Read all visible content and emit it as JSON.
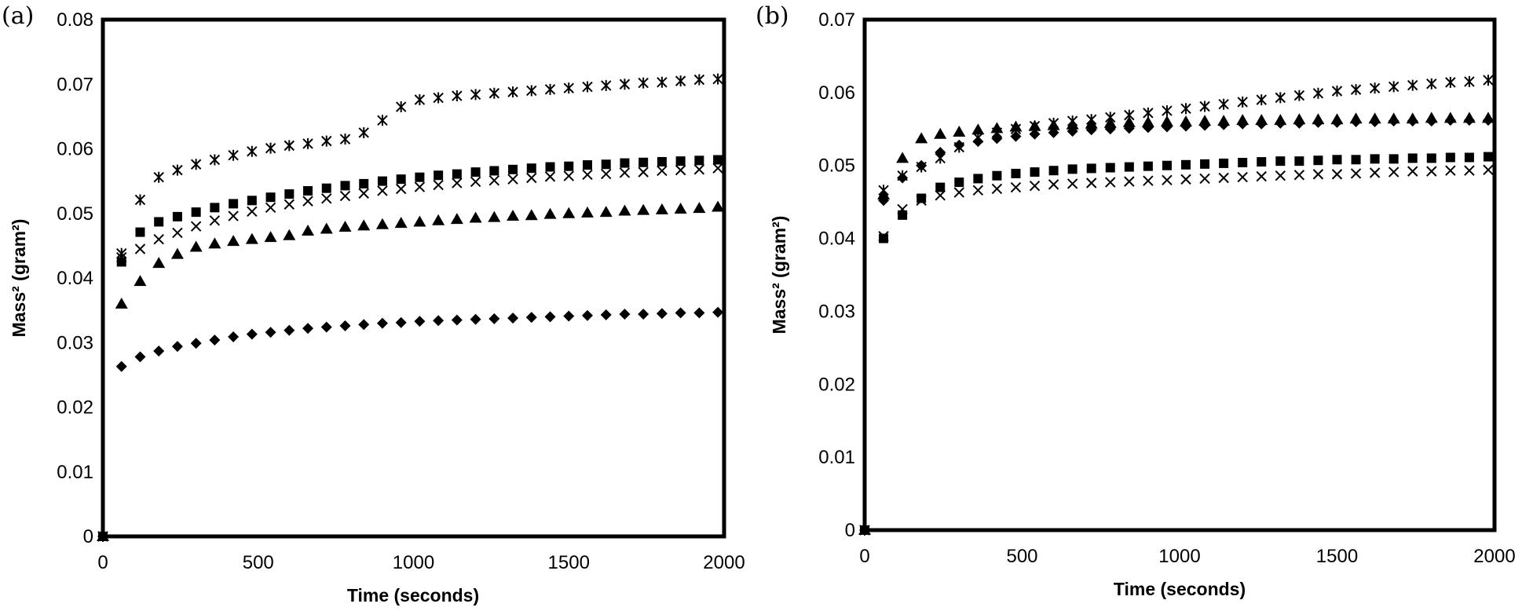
{
  "chart_data": [
    {
      "panel_label": "(a)",
      "type": "scatter",
      "xlabel": "Time (seconds)",
      "ylabel": "Mass² (gram²)",
      "xlim": [
        0,
        2000
      ],
      "ylim": [
        0,
        0.08
      ],
      "xticks": [
        0,
        500,
        1000,
        1500,
        2000
      ],
      "xtick_labels": [
        "0",
        "500",
        "1000",
        "1500",
        "2000"
      ],
      "yticks": [
        0,
        0.01,
        0.02,
        0.03,
        0.04,
        0.05,
        0.06,
        0.07,
        0.08
      ],
      "ytick_labels": [
        "0",
        "0.01",
        "0.02",
        "0.03",
        "0.04",
        "0.05",
        "0.06",
        "0.07",
        "0.08"
      ],
      "grid": false,
      "series": [
        {
          "name": "diamond series",
          "marker": "diamond",
          "x": [
            0,
            60,
            120,
            180,
            240,
            300,
            360,
            420,
            480,
            540,
            600,
            660,
            720,
            780,
            840,
            900,
            960,
            1020,
            1080,
            1140,
            1200,
            1260,
            1320,
            1380,
            1440,
            1500,
            1560,
            1620,
            1680,
            1740,
            1800,
            1860,
            1920,
            1980
          ],
          "y": [
            0,
            0.0263,
            0.0278,
            0.0287,
            0.0294,
            0.0299,
            0.0304,
            0.0309,
            0.0313,
            0.0316,
            0.0319,
            0.0322,
            0.0324,
            0.0326,
            0.0328,
            0.033,
            0.0331,
            0.0333,
            0.0334,
            0.0335,
            0.0336,
            0.0337,
            0.0338,
            0.0339,
            0.034,
            0.0341,
            0.0342,
            0.0343,
            0.0344,
            0.0344,
            0.0345,
            0.0346,
            0.0346,
            0.0347
          ]
        },
        {
          "name": "triangle series",
          "marker": "triangle",
          "x": [
            0,
            60,
            120,
            180,
            240,
            300,
            360,
            420,
            480,
            540,
            600,
            660,
            720,
            780,
            840,
            900,
            960,
            1020,
            1080,
            1140,
            1200,
            1260,
            1320,
            1380,
            1440,
            1500,
            1560,
            1620,
            1680,
            1740,
            1800,
            1860,
            1920,
            1980
          ],
          "y": [
            0,
            0.036,
            0.0395,
            0.0423,
            0.0437,
            0.0448,
            0.0453,
            0.0457,
            0.046,
            0.0463,
            0.0466,
            0.0473,
            0.0476,
            0.0479,
            0.0481,
            0.0483,
            0.0485,
            0.0487,
            0.0489,
            0.0491,
            0.0493,
            0.0494,
            0.0496,
            0.0497,
            0.0499,
            0.05,
            0.0501,
            0.0502,
            0.0504,
            0.0505,
            0.0506,
            0.0507,
            0.0508,
            0.051
          ]
        },
        {
          "name": "x series",
          "marker": "x",
          "x": [
            0,
            60,
            120,
            180,
            240,
            300,
            360,
            420,
            480,
            540,
            600,
            660,
            720,
            780,
            840,
            900,
            960,
            1020,
            1080,
            1140,
            1200,
            1260,
            1320,
            1380,
            1440,
            1500,
            1560,
            1620,
            1680,
            1740,
            1800,
            1860,
            1920,
            1980
          ],
          "y": [
            0,
            0.0432,
            0.0445,
            0.046,
            0.047,
            0.048,
            0.0489,
            0.0496,
            0.0503,
            0.0509,
            0.0514,
            0.0519,
            0.0523,
            0.0527,
            0.0531,
            0.0535,
            0.0538,
            0.0541,
            0.0544,
            0.0547,
            0.0549,
            0.0551,
            0.0553,
            0.0555,
            0.0557,
            0.0558,
            0.056,
            0.0561,
            0.0563,
            0.0564,
            0.0566,
            0.0567,
            0.0568,
            0.057
          ]
        },
        {
          "name": "square series",
          "marker": "square",
          "x": [
            0,
            60,
            120,
            180,
            240,
            300,
            360,
            420,
            480,
            540,
            600,
            660,
            720,
            780,
            840,
            900,
            960,
            1020,
            1080,
            1140,
            1200,
            1260,
            1320,
            1380,
            1440,
            1500,
            1560,
            1620,
            1680,
            1740,
            1800,
            1860,
            1920,
            1980
          ],
          "y": [
            0,
            0.0425,
            0.0471,
            0.0487,
            0.0495,
            0.0502,
            0.0509,
            0.0515,
            0.052,
            0.0525,
            0.053,
            0.0535,
            0.0539,
            0.0543,
            0.0546,
            0.055,
            0.0553,
            0.0556,
            0.0559,
            0.0561,
            0.0564,
            0.0566,
            0.0568,
            0.057,
            0.0572,
            0.0573,
            0.0575,
            0.0576,
            0.0578,
            0.0579,
            0.058,
            0.0581,
            0.0582,
            0.0583
          ]
        },
        {
          "name": "asterisk series",
          "marker": "asterisk",
          "x": [
            0,
            60,
            120,
            180,
            240,
            300,
            360,
            420,
            480,
            540,
            600,
            660,
            720,
            780,
            840,
            900,
            960,
            1020,
            1080,
            1140,
            1200,
            1260,
            1320,
            1380,
            1440,
            1500,
            1560,
            1620,
            1680,
            1740,
            1800,
            1860,
            1920,
            1980
          ],
          "y": [
            0,
            0.0438,
            0.0521,
            0.0556,
            0.0567,
            0.0576,
            0.0583,
            0.059,
            0.0596,
            0.0601,
            0.0605,
            0.0608,
            0.0612,
            0.0615,
            0.0625,
            0.0644,
            0.0665,
            0.0676,
            0.0679,
            0.0682,
            0.0684,
            0.0686,
            0.0688,
            0.069,
            0.0692,
            0.0694,
            0.0696,
            0.0698,
            0.07,
            0.0702,
            0.0703,
            0.0705,
            0.0707,
            0.0708
          ]
        }
      ]
    },
    {
      "panel_label": "(b)",
      "type": "scatter",
      "xlabel": "Time (seconds)",
      "ylabel": "Mass² (gram²)",
      "xlim": [
        0,
        2000
      ],
      "ylim": [
        0,
        0.07
      ],
      "xticks": [
        0,
        500,
        1000,
        1500,
        2000
      ],
      "xtick_labels": [
        "0",
        "500",
        "1000",
        "1500",
        "2000"
      ],
      "yticks": [
        0,
        0.01,
        0.02,
        0.03,
        0.04,
        0.05,
        0.06,
        0.07
      ],
      "ytick_labels": [
        "0",
        "0.01",
        "0.02",
        "0.03",
        "0.04",
        "0.05",
        "0.06",
        "0.07"
      ],
      "grid": false,
      "series": [
        {
          "name": "x series",
          "marker": "x",
          "x": [
            0,
            60,
            120,
            180,
            240,
            300,
            360,
            420,
            480,
            540,
            600,
            660,
            720,
            780,
            840,
            900,
            960,
            1020,
            1080,
            1140,
            1200,
            1260,
            1320,
            1380,
            1440,
            1500,
            1560,
            1620,
            1680,
            1740,
            1800,
            1860,
            1920,
            1980
          ],
          "y": [
            0,
            0.0403,
            0.044,
            0.0452,
            0.0459,
            0.0463,
            0.0466,
            0.0468,
            0.047,
            0.0472,
            0.0474,
            0.0475,
            0.0476,
            0.0477,
            0.0478,
            0.0479,
            0.048,
            0.0481,
            0.0482,
            0.0483,
            0.0484,
            0.0485,
            0.0486,
            0.0487,
            0.0488,
            0.0488,
            0.0489,
            0.049,
            0.0491,
            0.0492,
            0.0492,
            0.0493,
            0.0493,
            0.0494
          ]
        },
        {
          "name": "square series",
          "marker": "square",
          "x": [
            0,
            60,
            120,
            180,
            240,
            300,
            360,
            420,
            480,
            540,
            600,
            660,
            720,
            780,
            840,
            900,
            960,
            1020,
            1080,
            1140,
            1200,
            1260,
            1320,
            1380,
            1440,
            1500,
            1560,
            1620,
            1680,
            1740,
            1800,
            1860,
            1920,
            1980
          ],
          "y": [
            0,
            0.04,
            0.0432,
            0.0455,
            0.047,
            0.0477,
            0.0482,
            0.0486,
            0.0489,
            0.0491,
            0.0493,
            0.0495,
            0.0496,
            0.0497,
            0.0498,
            0.0499,
            0.05,
            0.0501,
            0.0502,
            0.0503,
            0.0504,
            0.0505,
            0.0506,
            0.0506,
            0.0507,
            0.0508,
            0.0508,
            0.0509,
            0.0509,
            0.051,
            0.051,
            0.0511,
            0.0511,
            0.0512
          ]
        },
        {
          "name": "diamond series",
          "marker": "diamond",
          "x": [
            0,
            60,
            120,
            180,
            240,
            300,
            360,
            420,
            480,
            540,
            600,
            660,
            720,
            780,
            840,
            900,
            960,
            1020,
            1080,
            1140,
            1200,
            1260,
            1320,
            1380,
            1440,
            1500,
            1560,
            1620,
            1680,
            1740,
            1800,
            1860,
            1920,
            1980
          ],
          "y": [
            0,
            0.0452,
            0.0483,
            0.05,
            0.0518,
            0.0528,
            0.0533,
            0.0537,
            0.054,
            0.0543,
            0.0545,
            0.0547,
            0.0549,
            0.055,
            0.0551,
            0.0552,
            0.0553,
            0.0554,
            0.0555,
            0.0556,
            0.0557,
            0.0557,
            0.0558,
            0.0558,
            0.0559,
            0.0559,
            0.056,
            0.056,
            0.0561,
            0.0561,
            0.0561,
            0.0562,
            0.0562,
            0.0562
          ]
        },
        {
          "name": "triangle series",
          "marker": "triangle",
          "x": [
            0,
            60,
            120,
            180,
            240,
            300,
            360,
            420,
            480,
            540,
            600,
            660,
            720,
            780,
            840,
            900,
            960,
            1020,
            1080,
            1140,
            1200,
            1260,
            1320,
            1380,
            1440,
            1500,
            1560,
            1620,
            1680,
            1740,
            1800,
            1860,
            1920,
            1980
          ],
          "y": [
            0,
            0.046,
            0.051,
            0.0537,
            0.0543,
            0.0546,
            0.0549,
            0.0551,
            0.0553,
            0.0554,
            0.0555,
            0.0556,
            0.0557,
            0.0558,
            0.0559,
            0.0559,
            0.056,
            0.056,
            0.0561,
            0.0561,
            0.0562,
            0.0562,
            0.0562,
            0.0563,
            0.0563,
            0.0563,
            0.0564,
            0.0564,
            0.0564,
            0.0564,
            0.0565,
            0.0565,
            0.0565,
            0.0565
          ]
        },
        {
          "name": "asterisk series",
          "marker": "asterisk",
          "x": [
            0,
            60,
            120,
            180,
            240,
            300,
            360,
            420,
            480,
            540,
            600,
            660,
            720,
            780,
            840,
            900,
            960,
            1020,
            1080,
            1140,
            1200,
            1260,
            1320,
            1380,
            1440,
            1500,
            1560,
            1620,
            1680,
            1740,
            1800,
            1860,
            1920,
            1980
          ],
          "y": [
            0,
            0.0466,
            0.0486,
            0.0498,
            0.051,
            0.0525,
            0.0538,
            0.0545,
            0.055,
            0.0554,
            0.0558,
            0.0561,
            0.0563,
            0.0566,
            0.0569,
            0.0572,
            0.0575,
            0.0578,
            0.0581,
            0.0584,
            0.0587,
            0.059,
            0.0593,
            0.0596,
            0.0599,
            0.0602,
            0.0604,
            0.0606,
            0.0608,
            0.061,
            0.0612,
            0.0614,
            0.0615,
            0.0617
          ]
        }
      ]
    }
  ]
}
